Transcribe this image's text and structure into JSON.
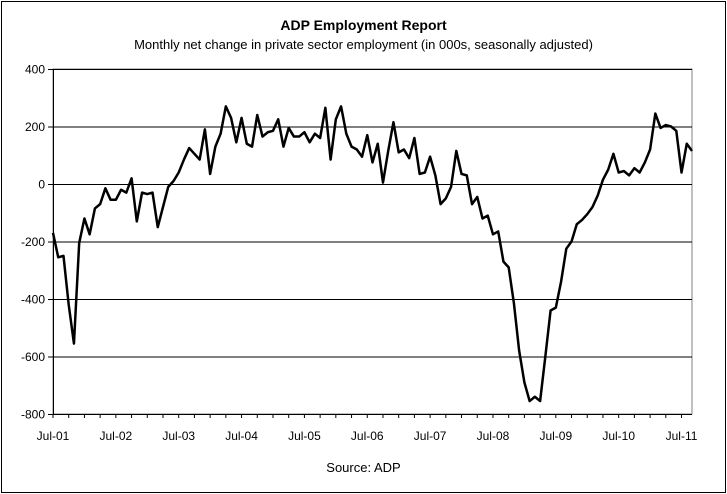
{
  "chart_data": {
    "type": "line",
    "title": "ADP Employment Report",
    "subtitle": "Monthly net change in private sector employment (in 000s, seasonally adjusted)",
    "source": "Source: ADP",
    "xlabel": "",
    "ylabel": "",
    "ylim": [
      -800,
      400
    ],
    "yticks": [
      -800,
      -600,
      -400,
      -200,
      0,
      200,
      400
    ],
    "ytick_labels": [
      "-800",
      "-600",
      "-400",
      "-200",
      "0",
      "200",
      "400"
    ],
    "x_tick_labels": [
      "Jul-01",
      "Jul-02",
      "Jul-03",
      "Jul-04",
      "Jul-05",
      "Jul-06",
      "Jul-07",
      "Jul-08",
      "Jul-09",
      "Jul-10",
      "Jul-11"
    ],
    "grid": true,
    "legend": "none",
    "line_color": "#000000",
    "x_start": "Jul-01",
    "x_end": "Jul-11",
    "series": [
      {
        "values": [
          -170,
          -255,
          -250,
          -420,
          -555,
          -205,
          -120,
          -175,
          -85,
          -70,
          -15,
          -55,
          -55,
          -20,
          -30,
          20,
          -130,
          -30,
          -35,
          -30,
          -150,
          -80,
          -10,
          10,
          40,
          85,
          125,
          105,
          85,
          190,
          35,
          130,
          175,
          270,
          230,
          145,
          230,
          140,
          130,
          240,
          165,
          180,
          185,
          225,
          130,
          195,
          165,
          165,
          180,
          145,
          175,
          160,
          265,
          85,
          225,
          270,
          175,
          130,
          120,
          95,
          170,
          75,
          140,
          5,
          115,
          215,
          110,
          120,
          90,
          160,
          35,
          40,
          95,
          30,
          -70,
          -50,
          -10,
          115,
          35,
          30,
          -70,
          -45,
          -120,
          -110,
          -175,
          -165,
          -270,
          -290,
          -415,
          -580,
          -690,
          -755,
          -740,
          -755,
          -600,
          -440,
          -430,
          -340,
          -225,
          -200,
          -140,
          -125,
          -105,
          -80,
          -40,
          15,
          50,
          105,
          40,
          45,
          30,
          55,
          40,
          75,
          120,
          245,
          195,
          205,
          200,
          185,
          40,
          140,
          115
        ]
      }
    ]
  }
}
